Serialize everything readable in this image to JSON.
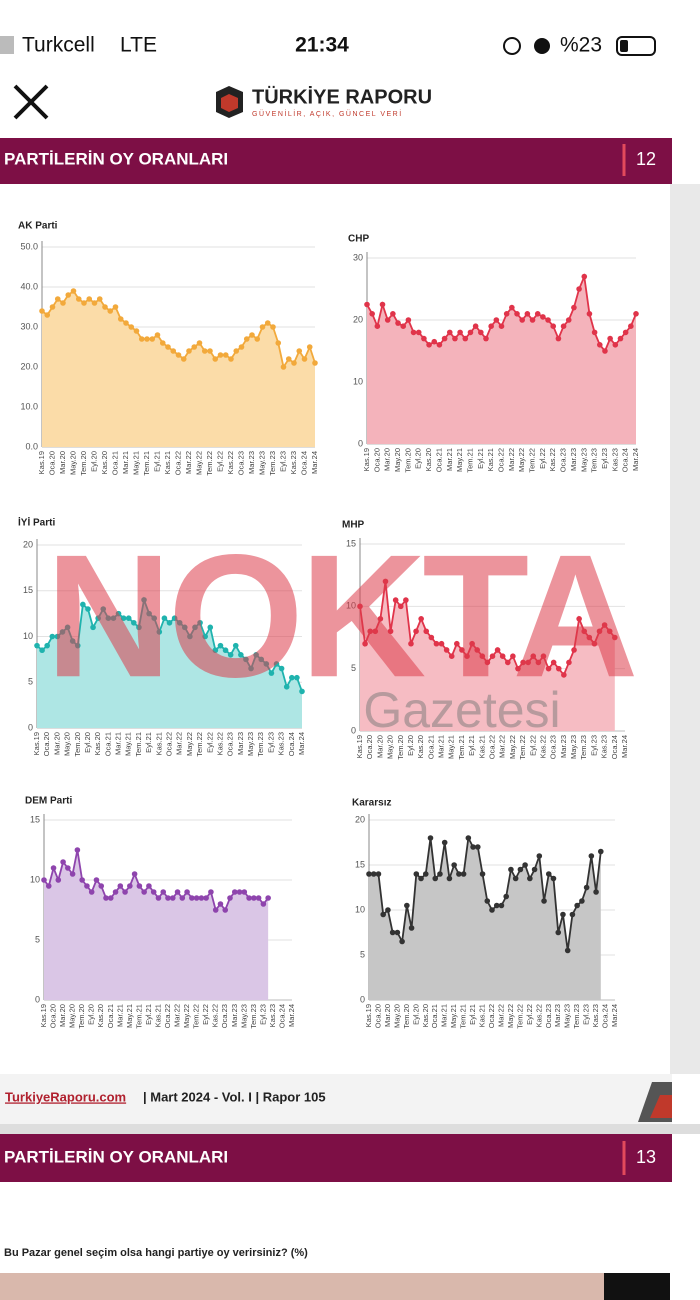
{
  "status_bar": {
    "carrier": "Turkcell",
    "network": "LTE",
    "time": "21:34",
    "battery": "%23"
  },
  "header": {
    "brand": "TÜRKİYE RAPORU",
    "tagline": "GÜVENİLİR, AÇIK, GÜNCEL VERİ"
  },
  "page_12": {
    "section_title": "PARTİLERİN OY ORANLARI",
    "page_number": "12"
  },
  "footer": {
    "site": "TurkiyeRaporu.com",
    "info": "| Mart 2024 - Vol. I | Rapor 105"
  },
  "page_13": {
    "section_title": "PARTİLERİN OY ORANLARI",
    "page_number": "13",
    "question": "Bu Pazar genel seçim olsa hangi partiye oy verirsiniz? (%)"
  },
  "watermark": {
    "main": "NOKTA",
    "sub": "Gazetesi"
  },
  "chart_data": [
    {
      "type": "line",
      "title": "AK Parti",
      "color": "#f2a93b",
      "fill_color": "#fbdca8",
      "categories": [
        "Kas.19",
        null,
        "Oca.20",
        null,
        "Mar.20",
        null,
        "May.20",
        null,
        "Tem.20",
        null,
        "Eyl.20",
        null,
        "Kas.20",
        null,
        "Oca.21",
        null,
        "Mar.21",
        null,
        "May.21",
        null,
        "Tem.21",
        null,
        "Eyl.21",
        null,
        "Kas.21",
        null,
        "Oca.22",
        null,
        "Mar.22",
        null,
        "May.22",
        null,
        "Tem.22",
        null,
        "Eyl.22",
        null,
        "Kas.22",
        null,
        "Oca.23",
        null,
        "Mar.23",
        null,
        "May.23",
        null,
        "Tem.23",
        null,
        "Eyl.23",
        null,
        "Kas.23",
        null,
        "Oca.24",
        null,
        "Mar.24"
      ],
      "values": [
        34,
        33,
        35,
        37,
        36,
        38,
        39,
        37,
        36,
        37,
        36,
        37,
        35,
        34,
        35,
        32,
        31,
        30,
        29,
        27,
        27,
        27,
        28,
        26,
        25,
        24,
        23,
        22,
        24,
        25,
        26,
        24,
        24,
        22,
        23,
        23,
        22,
        24,
        25,
        27,
        28,
        27,
        30,
        31,
        30,
        26,
        20,
        22,
        21,
        24,
        22,
        25,
        21
      ],
      "ylim": [
        0,
        50
      ],
      "yticks": [
        {
          "value": 0,
          "label": "0.0"
        },
        {
          "value": 10,
          "label": "10.0"
        },
        {
          "value": 20,
          "label": "20.0"
        },
        {
          "value": 30,
          "label": "30.0"
        },
        {
          "value": 40,
          "label": "40.0"
        },
        {
          "value": 50,
          "label": "50.0"
        }
      ],
      "grid": true
    },
    {
      "type": "line",
      "title": "CHP",
      "color": "#e0344a",
      "fill_color": "#f4b3bb",
      "categories": [
        "Kas.19",
        null,
        "Oca.20",
        null,
        "Mar.20",
        null,
        "May.20",
        null,
        "Tem.20",
        null,
        "Eyl.20",
        null,
        "Kas.20",
        null,
        "Oca.21",
        null,
        "Mar.21",
        null,
        "May.21",
        null,
        "Tem.21",
        null,
        "Eyl.21",
        null,
        "Kas.21",
        null,
        "Oca.22",
        null,
        "Mar.22",
        null,
        "May.22",
        null,
        "Tem.22",
        null,
        "Eyl.22",
        null,
        "Kas.22",
        null,
        "Oca.23",
        null,
        "Mar.23",
        null,
        "May.23",
        null,
        "Tem.23",
        null,
        "Eyl.23",
        null,
        "Kas.23",
        null,
        "Oca.24",
        null,
        "Mar.24"
      ],
      "values": [
        22.5,
        21,
        19,
        22.5,
        20,
        21,
        19.5,
        19,
        20,
        18,
        18,
        17,
        16,
        16.5,
        16,
        17,
        18,
        17,
        18,
        17,
        18,
        19,
        18,
        17,
        19,
        20,
        19,
        21,
        22,
        21,
        20,
        21,
        20,
        21,
        20.5,
        20,
        19,
        17,
        19,
        20,
        22,
        25,
        27,
        21,
        18,
        16,
        15,
        17,
        16,
        17,
        18,
        19,
        21
      ],
      "ylim": [
        0,
        30
      ],
      "yticks": [
        0,
        10,
        20,
        30
      ],
      "grid": true
    },
    {
      "type": "line",
      "title": "İYİ Parti",
      "color": "#1fb3ae",
      "fill_color": "#aee6e4",
      "categories": [
        "Kas.19",
        null,
        "Oca.20",
        null,
        "Mar.20",
        null,
        "May.20",
        null,
        "Tem.20",
        null,
        "Eyl.20",
        null,
        "Kas.20",
        null,
        "Oca.21",
        null,
        "Mar.21",
        null,
        "May.21",
        null,
        "Tem.21",
        null,
        "Eyl.21",
        null,
        "Kas.21",
        null,
        "Oca.22",
        null,
        "Mar.22",
        null,
        "May.22",
        null,
        "Tem.22",
        null,
        "Eyl.22",
        null,
        "Kas.22",
        null,
        "Oca.23",
        null,
        "Mar.23",
        null,
        "May.23",
        null,
        "Tem.23",
        null,
        "Eyl.23",
        null,
        "Kas.23",
        null,
        "Oca.24",
        null,
        "Mar.24"
      ],
      "values": [
        9,
        8.5,
        9,
        10,
        10,
        10.5,
        11,
        9.5,
        9,
        13.5,
        13,
        11,
        12,
        13,
        12,
        12,
        12.5,
        12,
        12,
        11.5,
        11,
        14,
        12.5,
        12,
        10.5,
        12,
        11.5,
        12,
        11.5,
        11,
        10,
        11,
        11.5,
        10,
        11,
        8.5,
        9,
        8.5,
        8,
        9,
        8,
        7.5,
        6.5,
        8,
        7.5,
        7,
        6,
        7,
        6.5,
        4.5,
        5.5,
        5.5,
        4
      ],
      "ylim": [
        0,
        20
      ],
      "yticks": [
        0,
        5,
        10,
        15,
        20
      ],
      "grid": true
    },
    {
      "type": "line",
      "title": "MHP",
      "color": "#e0344a",
      "fill_color": "#f6bcc3",
      "categories": [
        "Kas.19",
        null,
        "Oca.20",
        null,
        "Mar.20",
        null,
        "May.20",
        null,
        "Tem.20",
        null,
        "Eyl.20",
        null,
        "Kas.20",
        null,
        "Oca.21",
        null,
        "Mar.21",
        null,
        "May.21",
        null,
        "Tem.21",
        null,
        "Eyl.21",
        null,
        "Kas.21",
        null,
        "Oca.22",
        null,
        "Mar.22",
        null,
        "May.22",
        null,
        "Tem.22",
        null,
        "Eyl.22",
        null,
        "Kas.22",
        null,
        "Oca.23",
        null,
        "Mar.23",
        null,
        "May.23",
        null,
        "Tem.23",
        null,
        "Eyl.23",
        null,
        "Kas.23",
        null,
        "Oca.24",
        null,
        "Mar.24"
      ],
      "values": [
        10,
        7,
        8,
        8,
        9,
        12,
        8,
        10.5,
        10,
        10.5,
        7,
        8,
        9,
        8,
        7.5,
        7,
        7,
        6.5,
        6,
        7,
        6.5,
        6,
        7,
        6.5,
        6,
        5.5,
        6,
        6.5,
        6,
        5.5,
        6,
        5,
        5.5,
        5.5,
        6,
        5.5,
        6,
        5,
        5.5,
        5,
        4.5,
        5.5,
        6.5,
        9,
        8,
        7.5,
        7,
        8,
        8.5,
        8,
        7.5,
        null,
        null
      ],
      "ylim": [
        0,
        15
      ],
      "yticks": [
        0,
        5,
        10,
        15
      ],
      "grid": true
    },
    {
      "type": "line",
      "title": "DEM Parti",
      "color": "#8e44ad",
      "fill_color": "#dac6e6",
      "categories": [
        "Kas.19",
        null,
        "Oca.20",
        null,
        "Mar.20",
        null,
        "May.20",
        null,
        "Tem.20",
        null,
        "Eyl.20",
        null,
        "Kas.20",
        null,
        "Oca.21",
        null,
        "Mar.21",
        null,
        "May.21",
        null,
        "Tem.21",
        null,
        "Eyl.21",
        null,
        "Kas.21",
        null,
        "Oca.22",
        null,
        "Mar.22",
        null,
        "May.22",
        null,
        "Tem.22",
        null,
        "Eyl.22",
        null,
        "Kas.22",
        null,
        "Oca.23",
        null,
        "Mar.23",
        null,
        "May.23",
        null,
        "Tem.23",
        null,
        "Eyl.23",
        null,
        "Kas.23",
        null,
        "Oca.24",
        null,
        "Mar.24"
      ],
      "values": [
        10,
        9.5,
        11,
        10,
        11.5,
        11,
        10.5,
        12.5,
        10,
        9.5,
        9,
        10,
        9.5,
        8.5,
        8.5,
        9,
        9.5,
        9,
        9.5,
        10.5,
        9.5,
        9,
        9.5,
        9,
        8.5,
        9,
        8.5,
        8.5,
        9,
        8.5,
        9,
        8.5,
        8.5,
        8.5,
        8.5,
        9,
        7.5,
        8,
        7.5,
        8.5,
        9,
        9,
        9,
        8.5,
        8.5,
        8.5,
        8,
        8.5,
        null,
        null,
        null,
        null,
        null
      ],
      "ylim": [
        0,
        15
      ],
      "yticks": [
        0,
        5,
        10,
        15
      ],
      "grid": true
    },
    {
      "type": "line",
      "title": "Kararsız",
      "color": "#333333",
      "fill_color": "#c6c6c6",
      "categories": [
        "Kas.19",
        null,
        "Oca.20",
        null,
        "Mar.20",
        null,
        "May.20",
        null,
        "Tem.20",
        null,
        "Eyl.20",
        null,
        "Kas.20",
        null,
        "Oca.21",
        null,
        "Mar.21",
        null,
        "May.21",
        null,
        "Tem.21",
        null,
        "Eyl.21",
        null,
        "Kas.21",
        null,
        "Oca.22",
        null,
        "Mar.22",
        null,
        "May.22",
        null,
        "Tem.22",
        null,
        "Eyl.22",
        null,
        "Kas.22",
        null,
        "Oca.23",
        null,
        "Mar.23",
        null,
        "May.23",
        null,
        "Tem.23",
        null,
        "Eyl.23",
        null,
        "Kas.23",
        null,
        "Oca.24",
        null,
        "Mar.24"
      ],
      "values": [
        14,
        14,
        14,
        9.5,
        10,
        7.5,
        7.5,
        6.5,
        10.5,
        8,
        14,
        13.5,
        14,
        18,
        13.5,
        14,
        17.5,
        13.5,
        15,
        14,
        14,
        18,
        17,
        17,
        14,
        11,
        10,
        10.5,
        10.5,
        11.5,
        14.5,
        13.5,
        14.5,
        15,
        13.5,
        14.5,
        16,
        11,
        14,
        13.5,
        7.5,
        9.5,
        5.5,
        9.5,
        10.5,
        11,
        12.5,
        16,
        12,
        16.5,
        null,
        null,
        null
      ],
      "ylim": [
        0,
        20
      ],
      "yticks": [
        0,
        5,
        10,
        15,
        20
      ],
      "grid": true
    }
  ]
}
